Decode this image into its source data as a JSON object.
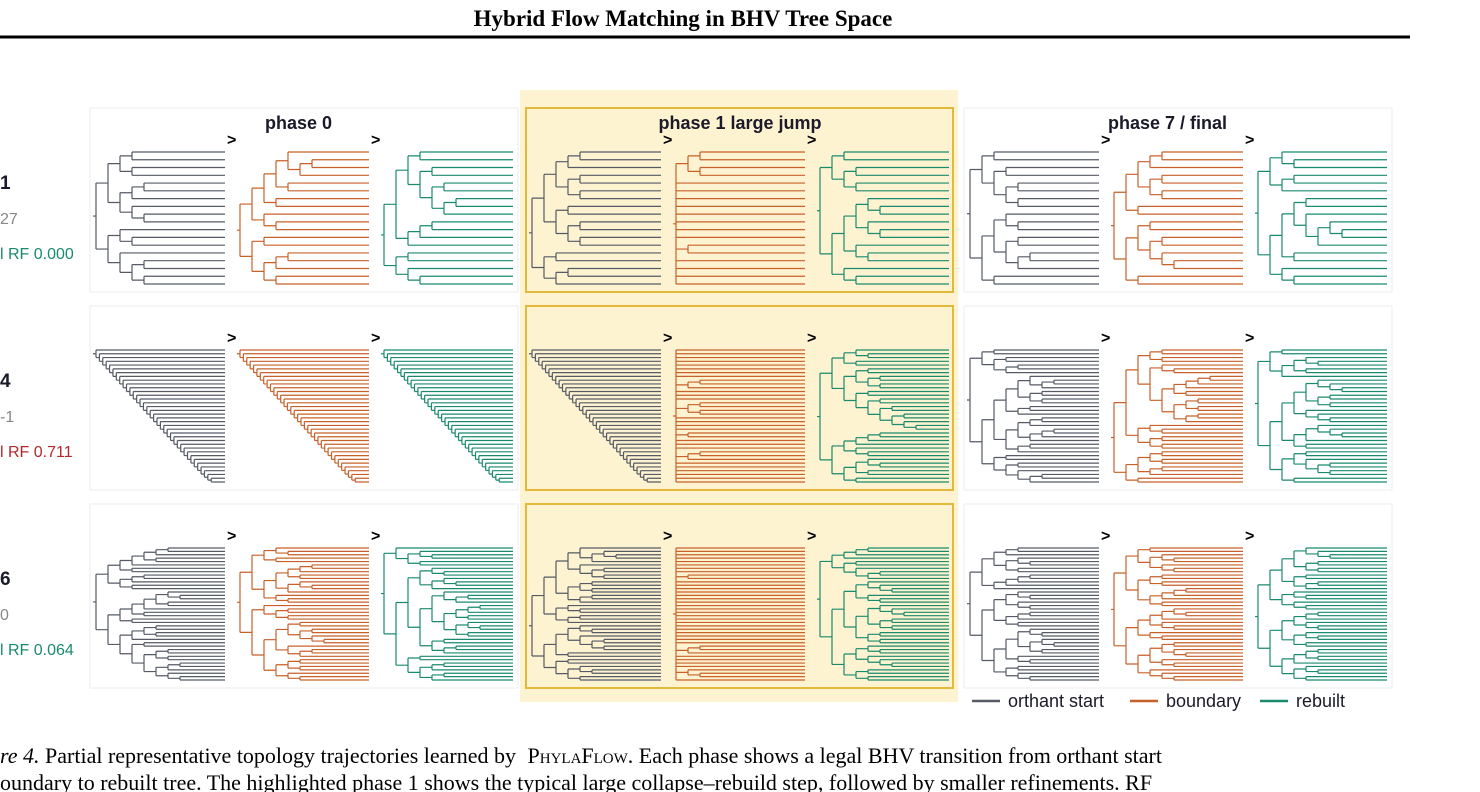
{
  "header": {
    "title": "Hybrid Flow Matching in BHV Tree Space"
  },
  "figure": {
    "phases": [
      "phase 0",
      "phase 1 large jump",
      "phase 7 / final"
    ],
    "arrow": ">",
    "rows": [
      {
        "id": "1",
        "stat": "27",
        "rf": "l RF 0.000",
        "rf_color": "#1a8a6e"
      },
      {
        "id": "4",
        "stat": "-1",
        "rf": "l RF 0.711",
        "rf_color": "#b3282d"
      },
      {
        "id": "6",
        "stat": "0",
        "rf": "l RF 0.064",
        "rf_color": "#1a8a6e"
      }
    ],
    "legend": [
      {
        "label": "orthant start",
        "color": "#555a66"
      },
      {
        "label": "boundary",
        "color": "#c8602a"
      },
      {
        "label": "rebuilt",
        "color": "#1a8a6e"
      }
    ]
  },
  "caption": {
    "label": "re 4.",
    "line1_a": "Partial representative topology trajectories learned by",
    "line1_name": "PhylaFlow",
    "line1_b": ". Each phase shows a legal BHV transition from orthant start",
    "line2": "oundary to rebuilt tree. The highlighted phase 1 shows the typical large collapse–rebuild step, followed by smaller refinements. RF"
  }
}
